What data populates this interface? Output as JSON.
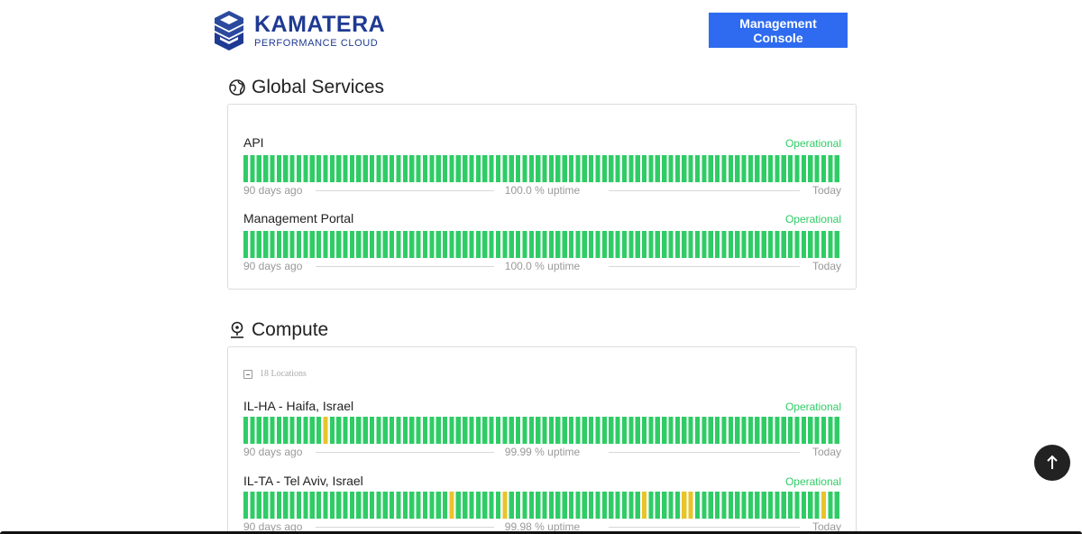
{
  "header": {
    "logo_name": "KAMATERA",
    "logo_tagline": "PERFORMANCE CLOUD",
    "console_button": "Management Console"
  },
  "colors": {
    "up": "#2fcc66",
    "partial": "#e8c42b",
    "brand": "#1f3a93",
    "button": "#2e6bf0"
  },
  "sections": {
    "global": {
      "title": "Global Services",
      "icon": "globe-icon",
      "components": [
        {
          "name": "API",
          "status": "Operational",
          "from_label": "90 days ago",
          "uptime": "100.0 % uptime",
          "to_label": "Today",
          "partial_days": []
        },
        {
          "name": "Management Portal",
          "status": "Operational",
          "from_label": "90 days ago",
          "uptime": "100.0 % uptime",
          "to_label": "Today",
          "partial_days": []
        }
      ]
    },
    "compute": {
      "title": "Compute",
      "icon": "location-pin-icon",
      "locations_label": "18 Locations",
      "components": [
        {
          "name": "IL-HA - Haifa, Israel",
          "status": "Operational",
          "from_label": "90 days ago",
          "uptime": "99.99 % uptime",
          "to_label": "Today",
          "partial_days": [
            12
          ]
        },
        {
          "name": "IL-TA - Tel Aviv, Israel",
          "status": "Operational",
          "from_label": "90 days ago",
          "uptime": "99.98 % uptime",
          "to_label": "Today",
          "partial_days": [
            31,
            39,
            60,
            66,
            67,
            87
          ]
        }
      ]
    }
  },
  "scroll_top_icon": "arrow-up-icon"
}
